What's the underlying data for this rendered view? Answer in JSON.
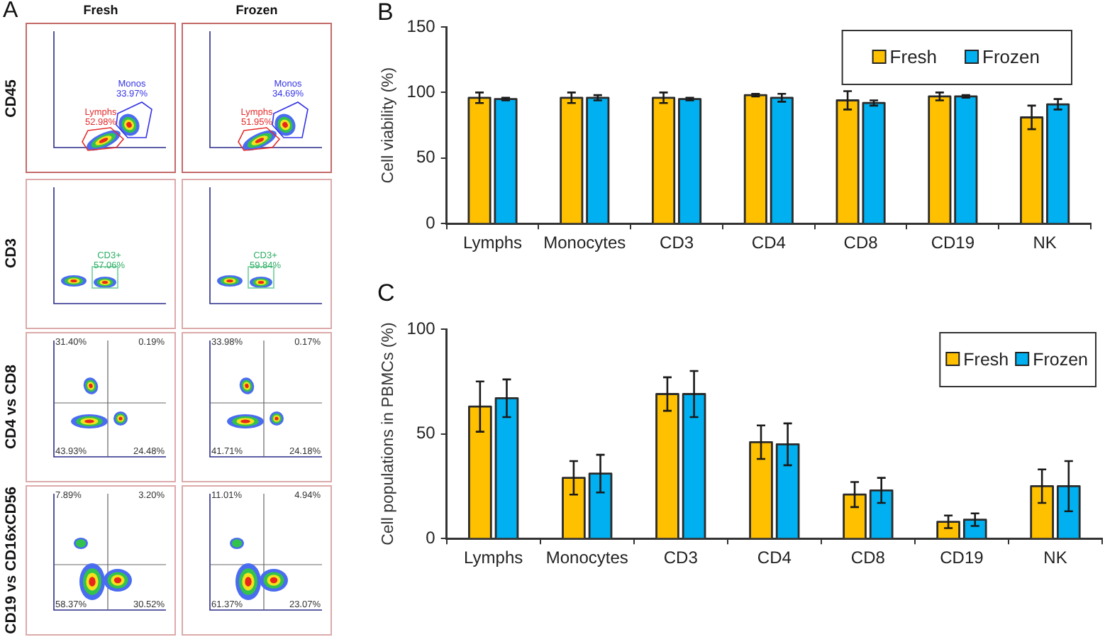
{
  "chart_data": [
    {
      "type": "other",
      "title": "A",
      "categories": [
        "Fresh",
        "Frozen"
      ],
      "y_categories": [
        "CD45",
        "CD3",
        "CD4 vs CD8",
        "CD19 vs CD16xCD56"
      ],
      "annotations": [
        {
          "text": "Lymphs 52.98%",
          "x": "Fresh",
          "y": "CD45"
        },
        {
          "text": "Monos 33.97%",
          "x": "Fresh",
          "y": "CD45"
        },
        {
          "text": "Lymphs 51.95%",
          "x": "Frozen",
          "y": "CD45"
        },
        {
          "text": "Monos 34.69%",
          "x": "Frozen",
          "y": "CD45"
        },
        {
          "text": "CD3+ 57.06%",
          "x": "Fresh",
          "y": "CD3"
        },
        {
          "text": "CD3+ 59.84%",
          "x": "Frozen",
          "y": "CD3"
        },
        {
          "text": "31.40%",
          "x": "Fresh",
          "y": "CD4 vs CD8"
        },
        {
          "text": "0.19%",
          "x": "Fresh",
          "y": "CD4 vs CD8"
        },
        {
          "text": "43.93%",
          "x": "Fresh",
          "y": "CD4 vs CD8"
        },
        {
          "text": "24.48%",
          "x": "Fresh",
          "y": "CD4 vs CD8"
        },
        {
          "text": "33.98%",
          "x": "Frozen",
          "y": "CD4 vs CD8"
        },
        {
          "text": "0.17%",
          "x": "Frozen",
          "y": "CD4 vs CD8"
        },
        {
          "text": "41.71%",
          "x": "Frozen",
          "y": "CD4 vs CD8"
        },
        {
          "text": "24.18%",
          "x": "Frozen",
          "y": "CD4 vs CD8"
        },
        {
          "text": "7.89%",
          "x": "Fresh",
          "y": "CD19 vs CD16xCD56"
        },
        {
          "text": "3.20%",
          "x": "Fresh",
          "y": "CD19 vs CD16xCD56"
        },
        {
          "text": "58.37%",
          "x": "Fresh",
          "y": "CD19 vs CD16xCD56"
        },
        {
          "text": "30.52%",
          "x": "Fresh",
          "y": "CD19 vs CD16xCD56"
        },
        {
          "text": "11.01%",
          "x": "Frozen",
          "y": "CD19 vs CD16xCD56"
        },
        {
          "text": "4.94%",
          "x": "Frozen",
          "y": "CD19 vs CD16xCD56"
        },
        {
          "text": "61.37%",
          "x": "Frozen",
          "y": "CD19 vs CD16xCD56"
        },
        {
          "text": "23.07%",
          "x": "Frozen",
          "y": "CD19 vs CD16xCD56"
        }
      ]
    },
    {
      "type": "bar",
      "title": "B",
      "categories": [
        "Lymphs",
        "Monocytes",
        "CD3",
        "CD4",
        "CD8",
        "CD19",
        "NK"
      ],
      "ylabel": "Cell viability (%)",
      "ylim": [
        0,
        150
      ],
      "yticks": [
        0,
        50,
        100,
        150
      ],
      "grid": false,
      "legend": "top right",
      "series": [
        {
          "name": "Fresh",
          "color": "#ffc000",
          "values": [
            96,
            96,
            96,
            98,
            94,
            97,
            81
          ],
          "errors": [
            4,
            4,
            4,
            1,
            7,
            3,
            9
          ]
        },
        {
          "name": "Frozen",
          "color": "#00b0f0",
          "values": [
            95,
            96,
            95,
            96,
            92,
            97,
            91
          ],
          "errors": [
            1,
            2,
            1,
            3,
            2,
            1,
            4
          ]
        }
      ]
    },
    {
      "type": "bar",
      "title": "C",
      "categories": [
        "Lymphs",
        "Monocytes",
        "CD3",
        "CD4",
        "CD8",
        "CD19",
        "NK"
      ],
      "ylabel": "Cell populations in PBMCs (%)",
      "ylim": [
        0,
        100
      ],
      "yticks": [
        0,
        50,
        100
      ],
      "grid": false,
      "legend": "top right",
      "series": [
        {
          "name": "Fresh",
          "color": "#ffc000",
          "values": [
            63,
            29,
            69,
            46,
            21,
            8,
            25
          ],
          "errors": [
            12,
            8,
            8,
            8,
            6,
            3,
            8
          ]
        },
        {
          "name": "Frozen",
          "color": "#00b0f0",
          "values": [
            67,
            31,
            69,
            45,
            23,
            9,
            25
          ],
          "errors": [
            9,
            9,
            11,
            10,
            6,
            3,
            12
          ]
        }
      ]
    }
  ]
}
